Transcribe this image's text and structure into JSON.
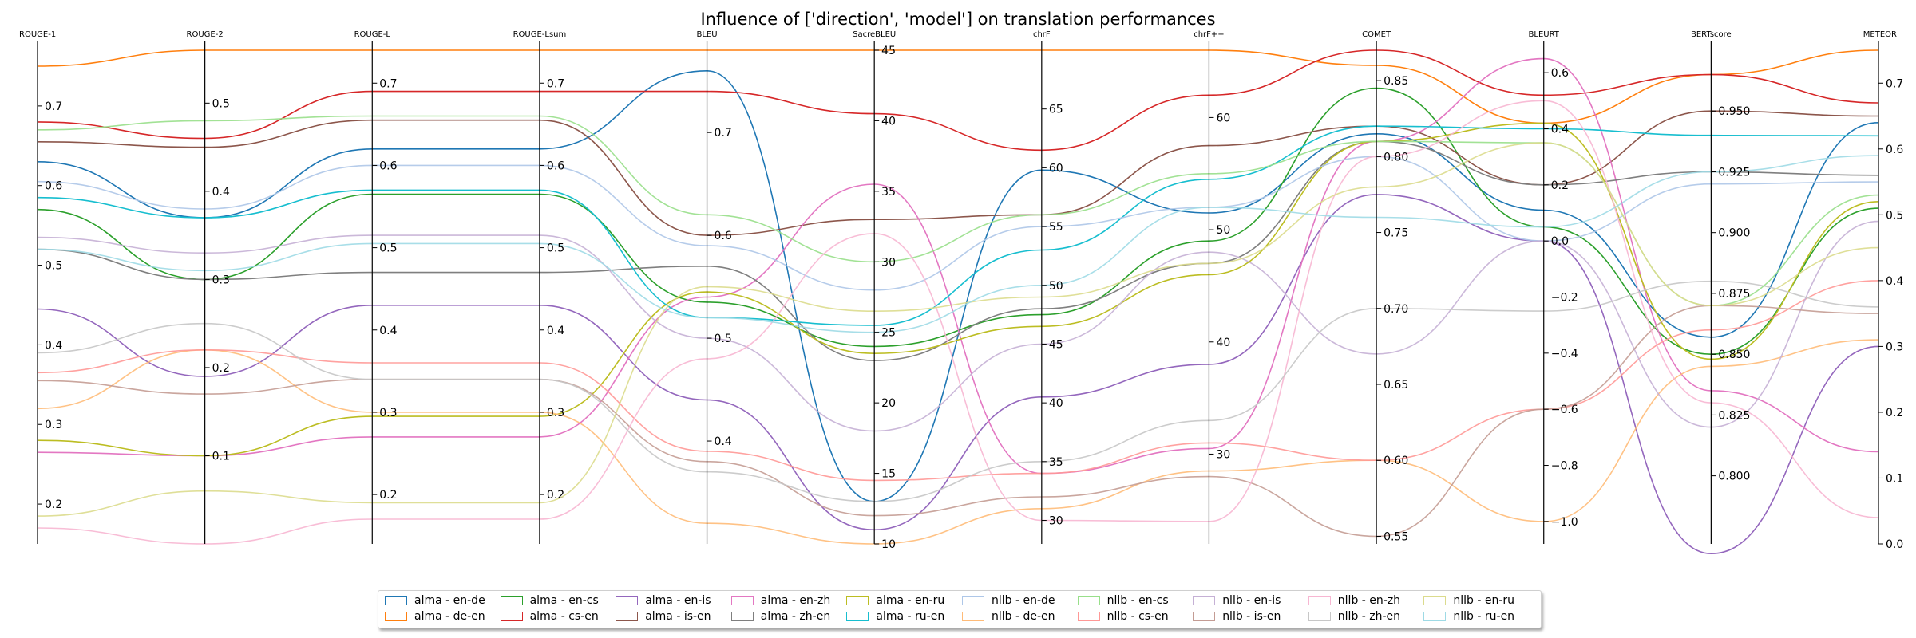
{
  "chart_data": {
    "type": "parallel_coordinates",
    "title": "Influence of ['direction', 'model'] on translation performances",
    "axes": [
      {
        "name": "ROUGE-1",
        "range": [
          0.15,
          0.77
        ],
        "ticks": [
          0.2,
          0.3,
          0.4,
          0.5,
          0.6,
          0.7
        ],
        "tick_labels": [
          "0.2",
          "0.3",
          "0.4",
          "0.5",
          "0.6",
          "0.7"
        ]
      },
      {
        "name": "ROUGE-2",
        "range": [
          0.0,
          0.56
        ],
        "ticks": [
          0.1,
          0.2,
          0.3,
          0.4,
          0.5
        ],
        "tick_labels": [
          "0.1",
          "0.2",
          "0.3",
          "0.4",
          "0.5"
        ]
      },
      {
        "name": "ROUGE-L",
        "range": [
          0.14,
          0.74
        ],
        "ticks": [
          0.2,
          0.3,
          0.4,
          0.5,
          0.6,
          0.7
        ],
        "tick_labels": [
          "0.2",
          "0.3",
          "0.4",
          "0.5",
          "0.6",
          "0.7"
        ]
      },
      {
        "name": "ROUGE-Lsum",
        "range": [
          0.14,
          0.74
        ],
        "ticks": [
          0.2,
          0.3,
          0.4,
          0.5,
          0.6,
          0.7
        ],
        "tick_labels": [
          "0.2",
          "0.3",
          "0.4",
          "0.5",
          "0.6",
          "0.7"
        ]
      },
      {
        "name": "BLEU",
        "range": [
          0.3,
          0.78
        ],
        "ticks": [
          0.4,
          0.5,
          0.6,
          0.7
        ],
        "tick_labels": [
          "0.4",
          "0.5",
          "0.6",
          "0.7"
        ]
      },
      {
        "name": "SacreBLEU",
        "range": [
          10,
          45
        ],
        "ticks": [
          10,
          15,
          20,
          25,
          30,
          35,
          40,
          45
        ],
        "tick_labels": [
          "10",
          "15",
          "20",
          "25",
          "30",
          "35",
          "40",
          "45"
        ]
      },
      {
        "name": "chrF",
        "range": [
          28,
          70
        ],
        "ticks": [
          30,
          35,
          40,
          45,
          50,
          55,
          60,
          65
        ],
        "tick_labels": [
          "30",
          "35",
          "40",
          "45",
          "50",
          "55",
          "60",
          "65"
        ]
      },
      {
        "name": "chrF++",
        "range": [
          22,
          66
        ],
        "ticks": [
          30,
          40,
          50,
          60
        ],
        "tick_labels": [
          "30",
          "40",
          "50",
          "60"
        ]
      },
      {
        "name": "COMET",
        "range": [
          0.545,
          0.87
        ],
        "ticks": [
          0.55,
          0.6,
          0.65,
          0.7,
          0.75,
          0.8,
          0.85
        ],
        "tick_labels": [
          "0.55",
          "0.60",
          "0.65",
          "0.70",
          "0.75",
          "0.80",
          "0.85"
        ]
      },
      {
        "name": "BLEURT",
        "range": [
          -1.08,
          0.68
        ],
        "ticks": [
          -1.0,
          -0.8,
          -0.6,
          -0.4,
          -0.2,
          0.0,
          0.2,
          0.4,
          0.6
        ],
        "tick_labels": [
          "−1.0",
          "−0.8",
          "−0.6",
          "−0.4",
          "−0.2",
          "0.0",
          "0.2",
          "0.4",
          "0.6"
        ]
      },
      {
        "name": "BERTscore",
        "range": [
          0.772,
          0.975
        ],
        "ticks": [
          0.8,
          0.825,
          0.85,
          0.875,
          0.9,
          0.925,
          0.95
        ],
        "tick_labels": [
          "0.800",
          "0.825",
          "0.850",
          "0.875",
          "0.900",
          "0.925",
          "0.950"
        ]
      },
      {
        "name": "METEOR",
        "range": [
          0.0,
          0.75
        ],
        "ticks": [
          0.0,
          0.1,
          0.2,
          0.3,
          0.4,
          0.5,
          0.6,
          0.7
        ],
        "tick_labels": [
          "0.0",
          "0.1",
          "0.2",
          "0.3",
          "0.4",
          "0.5",
          "0.6",
          "0.7"
        ]
      }
    ],
    "series": [
      {
        "name": "alma - en-de",
        "color": "#1f77b4",
        "alpha": 1.0,
        "values": [
          0.63,
          0.37,
          0.62,
          0.62,
          0.76,
          13.0,
          59.8,
          51.5,
          0.815,
          0.11,
          0.857,
          0.64
        ]
      },
      {
        "name": "alma - de-en",
        "color": "#ff7f0e",
        "alpha": 1.0,
        "values": [
          0.75,
          0.56,
          0.74,
          0.74,
          0.78,
          45.0,
          70.0,
          66.0,
          0.86,
          0.42,
          0.965,
          0.75
        ]
      },
      {
        "name": "alma - en-cs",
        "color": "#2ca02c",
        "alpha": 1.0,
        "values": [
          0.57,
          0.3,
          0.565,
          0.565,
          0.535,
          24.0,
          47.5,
          49.0,
          0.845,
          0.05,
          0.85,
          0.51
        ]
      },
      {
        "name": "alma - cs-en",
        "color": "#d62728",
        "alpha": 1.0,
        "values": [
          0.68,
          0.46,
          0.69,
          0.69,
          0.74,
          40.5,
          61.5,
          62.0,
          0.87,
          0.52,
          0.965,
          0.67
        ]
      },
      {
        "name": "alma - en-is",
        "color": "#9467bd",
        "alpha": 1.0,
        "values": [
          0.445,
          0.19,
          0.43,
          0.43,
          0.44,
          11.0,
          40.5,
          38.0,
          0.775,
          0.0,
          0.768,
          0.3
        ]
      },
      {
        "name": "alma - is-en",
        "color": "#8c564b",
        "alpha": 1.0,
        "values": [
          0.655,
          0.45,
          0.655,
          0.655,
          0.6,
          33.0,
          56.0,
          57.5,
          0.82,
          0.2,
          0.95,
          0.65
        ]
      },
      {
        "name": "alma - en-zh",
        "color": "#e377c2",
        "alpha": 1.0,
        "values": [
          0.265,
          0.1,
          0.27,
          0.27,
          0.54,
          35.5,
          34.0,
          30.5,
          0.81,
          0.65,
          0.835,
          0.14
        ]
      },
      {
        "name": "alma - zh-en",
        "color": "#7f7f7f",
        "alpha": 1.0,
        "values": [
          0.52,
          0.3,
          0.47,
          0.47,
          0.57,
          23.0,
          48.0,
          47.0,
          0.81,
          0.2,
          0.925,
          0.56
        ]
      },
      {
        "name": "alma - en-ru",
        "color": "#bcbd22",
        "alpha": 1.0,
        "values": [
          0.28,
          0.1,
          0.295,
          0.295,
          0.545,
          23.5,
          46.5,
          46.0,
          0.81,
          0.42,
          0.848,
          0.52
        ]
      },
      {
        "name": "alma - ru-en",
        "color": "#17becf",
        "alpha": 1.0,
        "values": [
          0.585,
          0.37,
          0.57,
          0.57,
          0.52,
          25.5,
          53.0,
          54.5,
          0.82,
          0.4,
          0.94,
          0.62
        ]
      },
      {
        "name": "nllb - en-de",
        "color": "#aec7e8",
        "alpha": 0.9,
        "values": [
          0.605,
          0.38,
          0.6,
          0.6,
          0.59,
          28.0,
          55.0,
          52.0,
          0.8,
          0.0,
          0.92,
          0.55
        ]
      },
      {
        "name": "nllb - de-en",
        "color": "#ffbb78",
        "alpha": 0.9,
        "values": [
          0.32,
          0.22,
          0.3,
          0.3,
          0.32,
          10.0,
          31.0,
          28.5,
          0.6,
          -1.0,
          0.845,
          0.31
        ]
      },
      {
        "name": "nllb - en-cs",
        "color": "#98df8a",
        "alpha": 0.9,
        "values": [
          0.67,
          0.48,
          0.66,
          0.66,
          0.62,
          30.0,
          56.0,
          55.0,
          0.81,
          0.35,
          0.87,
          0.53
        ]
      },
      {
        "name": "nllb - cs-en",
        "color": "#ff9896",
        "alpha": 0.9,
        "values": [
          0.365,
          0.22,
          0.36,
          0.36,
          0.39,
          14.5,
          34.0,
          31.0,
          0.6,
          -0.6,
          0.86,
          0.4
        ]
      },
      {
        "name": "nllb - en-is",
        "color": "#c5b0d5",
        "alpha": 0.9,
        "values": [
          0.535,
          0.33,
          0.515,
          0.515,
          0.5,
          18.0,
          45.0,
          48.0,
          0.67,
          0.0,
          0.82,
          0.49
        ]
      },
      {
        "name": "nllb - is-en",
        "color": "#c49c94",
        "alpha": 0.9,
        "values": [
          0.355,
          0.17,
          0.34,
          0.34,
          0.38,
          12.0,
          32.0,
          28.0,
          0.55,
          -0.6,
          0.87,
          0.35
        ]
      },
      {
        "name": "nllb - en-zh",
        "color": "#f7b6d2",
        "alpha": 0.9,
        "values": [
          0.17,
          0.0,
          0.17,
          0.17,
          0.48,
          32.0,
          30.0,
          24.0,
          0.8,
          0.5,
          0.83,
          0.04
        ]
      },
      {
        "name": "nllb - zh-en",
        "color": "#c7c7c7",
        "alpha": 0.9,
        "values": [
          0.39,
          0.25,
          0.34,
          0.34,
          0.37,
          13.0,
          35.0,
          33.0,
          0.7,
          -0.25,
          0.88,
          0.36
        ]
      },
      {
        "name": "nllb - en-ru",
        "color": "#dbdb8d",
        "alpha": 0.9,
        "values": [
          0.185,
          0.06,
          0.19,
          0.19,
          0.55,
          26.5,
          49.0,
          47.0,
          0.78,
          0.35,
          0.87,
          0.45
        ]
      },
      {
        "name": "nllb - ru-en",
        "color": "#9edae5",
        "alpha": 0.9,
        "values": [
          0.52,
          0.31,
          0.505,
          0.505,
          0.52,
          25.0,
          50.0,
          52.0,
          0.76,
          0.05,
          0.925,
          0.59
        ]
      }
    ],
    "legend": {
      "placement": "bottom-center",
      "columns": 10
    }
  }
}
